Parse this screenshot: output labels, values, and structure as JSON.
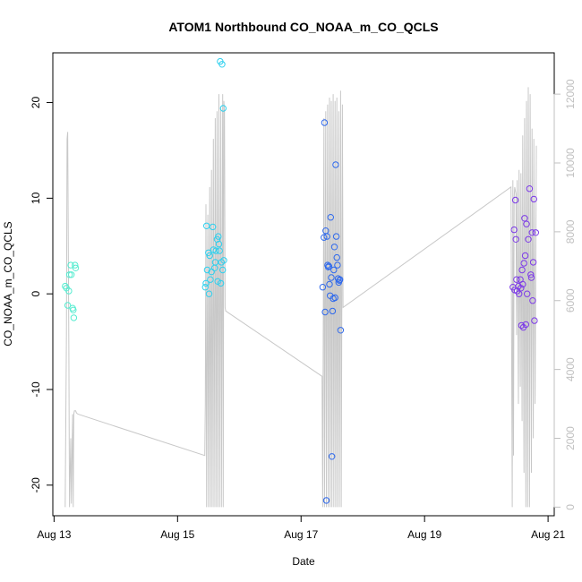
{
  "chart_data": {
    "type": "scatter",
    "title": "ATOM1 Northbound CO_NOAA_m_CO_QCLS",
    "xlabel": "Date",
    "ylabel": "CO_NOAA_m_CO_QCLS",
    "x_ticks": [
      {
        "value": 13,
        "label": "Aug 13"
      },
      {
        "value": 15,
        "label": "Aug 15"
      },
      {
        "value": 17,
        "label": "Aug 17"
      },
      {
        "value": 19,
        "label": "Aug 19"
      },
      {
        "value": 21,
        "label": "Aug 21"
      }
    ],
    "xlim": [
      12.98,
      21.1
    ],
    "ylim": [
      -23.2,
      25.2
    ],
    "y_ticks": [
      -20,
      -10,
      0,
      10,
      20
    ],
    "y2lim": [
      -250,
      13200
    ],
    "y2_ticks": [
      0,
      2000,
      4000,
      6000,
      8000,
      10000,
      12000
    ],
    "grid": false,
    "series": [
      {
        "color": "#55ecd0",
        "points": [
          [
            13.18,
            0.8
          ],
          [
            13.2,
            0.6
          ],
          [
            13.22,
            -1.2
          ],
          [
            13.24,
            0.3
          ],
          [
            13.25,
            2.0
          ],
          [
            13.27,
            3.0
          ],
          [
            13.28,
            2.0
          ],
          [
            13.3,
            -1.5
          ],
          [
            13.31,
            -1.7
          ],
          [
            13.32,
            -2.5
          ],
          [
            13.34,
            3.0
          ],
          [
            13.35,
            2.7
          ]
        ]
      },
      {
        "color": "#2ed0ee",
        "points": [
          [
            15.45,
            0.7
          ],
          [
            15.46,
            1.1
          ],
          [
            15.47,
            7.1
          ],
          [
            15.48,
            2.5
          ],
          [
            15.5,
            4.3
          ],
          [
            15.51,
            0.0
          ],
          [
            15.52,
            4.0
          ],
          [
            15.53,
            1.5
          ],
          [
            15.55,
            2.3
          ],
          [
            15.57,
            7.0
          ],
          [
            15.58,
            4.6
          ],
          [
            15.6,
            2.7
          ],
          [
            15.61,
            3.3
          ],
          [
            15.62,
            4.5
          ],
          [
            15.64,
            5.7
          ],
          [
            15.65,
            1.3
          ],
          [
            15.66,
            6.0
          ],
          [
            15.67,
            5.2
          ],
          [
            15.68,
            4.5
          ],
          [
            15.69,
            24.3
          ],
          [
            15.7,
            1.1
          ],
          [
            15.71,
            3.3
          ],
          [
            15.72,
            24.0
          ],
          [
            15.73,
            2.5
          ],
          [
            15.74,
            19.4
          ],
          [
            15.75,
            3.5
          ]
        ]
      },
      {
        "color": "#2f69ec",
        "points": [
          [
            17.35,
            0.7
          ],
          [
            17.37,
            5.9
          ],
          [
            17.38,
            17.9
          ],
          [
            17.39,
            -1.9
          ],
          [
            17.4,
            6.6
          ],
          [
            17.41,
            -21.6
          ],
          [
            17.42,
            6.0
          ],
          [
            17.43,
            3.0
          ],
          [
            17.44,
            2.8
          ],
          [
            17.45,
            2.9
          ],
          [
            17.46,
            1.0
          ],
          [
            17.47,
            -0.2
          ],
          [
            17.48,
            8.0
          ],
          [
            17.49,
            1.7
          ],
          [
            17.5,
            -17.0
          ],
          [
            17.51,
            -1.8
          ],
          [
            17.52,
            -0.5
          ],
          [
            17.53,
            2.5
          ],
          [
            17.54,
            4.9
          ],
          [
            17.55,
            -0.4
          ],
          [
            17.56,
            13.5
          ],
          [
            17.57,
            6.0
          ],
          [
            17.58,
            3.8
          ],
          [
            17.59,
            3.0
          ],
          [
            17.6,
            1.6
          ],
          [
            17.61,
            1.2
          ],
          [
            17.62,
            1.4
          ],
          [
            17.63,
            1.5
          ],
          [
            17.64,
            -3.8
          ]
        ]
      },
      {
        "color": "#7d3ae8",
        "points": [
          [
            20.43,
            0.7
          ],
          [
            20.45,
            6.7
          ],
          [
            20.46,
            0.4
          ],
          [
            20.47,
            9.8
          ],
          [
            20.48,
            5.7
          ],
          [
            20.49,
            1.5
          ],
          [
            20.5,
            0.3
          ],
          [
            20.52,
            0.8
          ],
          [
            20.53,
            0.0
          ],
          [
            20.55,
            1.5
          ],
          [
            20.56,
            0.6
          ],
          [
            20.57,
            -3.3
          ],
          [
            20.58,
            2.5
          ],
          [
            20.59,
            1.0
          ],
          [
            20.6,
            -3.5
          ],
          [
            20.61,
            3.2
          ],
          [
            20.62,
            7.9
          ],
          [
            20.63,
            4.0
          ],
          [
            20.64,
            -3.2
          ],
          [
            20.65,
            7.3
          ],
          [
            20.66,
            0.0
          ],
          [
            20.68,
            5.7
          ],
          [
            20.7,
            11.0
          ],
          [
            20.72,
            2.0
          ],
          [
            20.73,
            1.7
          ],
          [
            20.74,
            6.4
          ],
          [
            20.75,
            -0.7
          ],
          [
            20.76,
            3.3
          ],
          [
            20.77,
            9.9
          ],
          [
            20.78,
            -2.8
          ],
          [
            20.8,
            6.4
          ]
        ]
      }
    ],
    "secondary_series": {
      "color": "#c8c8c8",
      "x": [
        13.18,
        13.2,
        13.21,
        13.22,
        13.23,
        13.24,
        13.25,
        13.27,
        13.28,
        13.3,
        13.31,
        13.32,
        13.33,
        13.35,
        13.36,
        13.37,
        13.39,
        15.44,
        15.45,
        15.46,
        15.47,
        15.49,
        15.5,
        15.52,
        15.53,
        15.55,
        15.56,
        15.58,
        15.59,
        15.61,
        15.62,
        15.64,
        15.65,
        15.67,
        15.68,
        15.7,
        15.71,
        15.73,
        15.74,
        15.75,
        15.76,
        15.77,
        15.78,
        17.34,
        17.35,
        17.37,
        17.38,
        17.4,
        17.41,
        17.43,
        17.44,
        17.46,
        17.47,
        17.49,
        17.5,
        17.52,
        17.53,
        17.55,
        17.56,
        17.58,
        17.59,
        17.61,
        17.62,
        17.64,
        17.65,
        17.67,
        17.68,
        20.4,
        20.42,
        20.43,
        20.44,
        20.45,
        20.46,
        20.48,
        20.49,
        20.5,
        20.52,
        20.53,
        20.55,
        20.56,
        20.58,
        20.59,
        20.61,
        20.62,
        20.64,
        20.65,
        20.67,
        20.68,
        20.7,
        20.71,
        20.73,
        20.74,
        20.76,
        20.77,
        20.79,
        20.81
      ],
      "y": [
        0,
        5000,
        10700,
        10900,
        8000,
        4500,
        0,
        2000,
        100,
        2700,
        0,
        2700,
        2800,
        2800,
        2750,
        2720,
        2700,
        1500,
        3000,
        8800,
        0,
        8500,
        0,
        9300,
        0,
        9800,
        0,
        10700,
        0,
        11300,
        0,
        11500,
        0,
        12000,
        0,
        11600,
        0,
        12000,
        0,
        11800,
        11500,
        5800,
        5700,
        3800,
        0,
        11300,
        0,
        11500,
        0,
        11700,
        0,
        11900,
        0,
        11800,
        0,
        12000,
        0,
        11800,
        0,
        11900,
        0,
        11500,
        0,
        12100,
        0,
        11700,
        5800,
        9300,
        0,
        9500,
        1500,
        9000,
        9300,
        9100,
        5000,
        9500,
        3000,
        9800,
        3500,
        9700,
        2500,
        10800,
        1000,
        11300,
        0,
        11800,
        0,
        12200,
        0,
        12000,
        1000,
        11000,
        2000,
        10700,
        3000,
        10500
      ]
    }
  }
}
